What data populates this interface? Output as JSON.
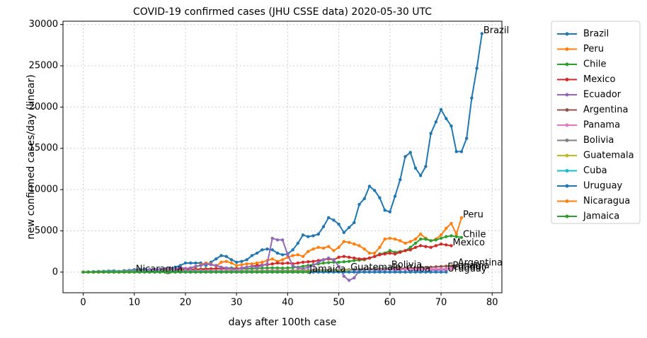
{
  "chart_data": {
    "type": "line",
    "title": "COVID-19 confirmed cases (JHU CSSE data) 2020-05-30 UTC",
    "xlabel": "days after 100th case",
    "ylabel": "new confirmed cases/day (linear)",
    "xlim": [
      -3.95,
      81.9
    ],
    "ylim": [
      -2500,
      30400
    ],
    "xticks": [
      0,
      10,
      20,
      30,
      40,
      50,
      60,
      70,
      80
    ],
    "yticks": [
      0,
      5000,
      10000,
      15000,
      20000,
      25000,
      30000
    ],
    "grid": true,
    "legend": "outside right",
    "series": [
      {
        "name": "Brazil",
        "color": "#1f77b4",
        "values": [
          0,
          20,
          50,
          80,
          100,
          130,
          150,
          100,
          180,
          200,
          300,
          330,
          350,
          300,
          320,
          340,
          400,
          450,
          600,
          800,
          1100,
          1100,
          1100,
          1100,
          800,
          1200,
          1600,
          2000,
          1900,
          1500,
          1200,
          1300,
          1500,
          2000,
          2300,
          2700,
          2800,
          2700,
          2300,
          2100,
          2200,
          2700,
          3500,
          4500,
          4300,
          4400,
          4600,
          5500,
          6600,
          6300,
          5800,
          4800,
          5400,
          6000,
          8200,
          8900,
          10400,
          9900,
          9000,
          7500,
          7300,
          9200,
          11200,
          14000,
          14500,
          12600,
          11700,
          12800,
          16800,
          18200,
          19700,
          18600,
          17700,
          14600,
          14600,
          16200,
          21100,
          24700,
          28900
        ]
      },
      {
        "name": "Peru",
        "color": "#ff7f0e",
        "values": [
          10,
          20,
          30,
          40,
          50,
          60,
          60,
          80,
          100,
          120,
          150,
          180,
          200,
          220,
          250,
          280,
          300,
          320,
          350,
          400,
          450,
          500,
          600,
          900,
          1100,
          1000,
          700,
          1200,
          1300,
          1100,
          800,
          900,
          1000,
          1000,
          1100,
          1200,
          1400,
          1600,
          1300,
          1500,
          1800,
          2000,
          2100,
          1900,
          2500,
          2800,
          3000,
          2900,
          3100,
          2600,
          3000,
          3700,
          3600,
          3400,
          3200,
          2800,
          2300,
          2300,
          3000,
          4000,
          4100,
          4000,
          3800,
          3500,
          3700,
          4000,
          4600,
          4100,
          3800,
          4000,
          4500,
          5300,
          5900,
          4600,
          6600
        ]
      },
      {
        "name": "Chile",
        "color": "#2ca02c",
        "values": [
          0,
          10,
          20,
          30,
          40,
          50,
          60,
          70,
          80,
          90,
          100,
          110,
          120,
          150,
          180,
          200,
          220,
          250,
          280,
          300,
          300,
          320,
          350,
          380,
          400,
          400,
          420,
          450,
          480,
          500,
          450,
          420,
          400,
          420,
          450,
          480,
          500,
          520,
          500,
          480,
          500,
          550,
          600,
          700,
          800,
          900,
          1000,
          1100,
          1150,
          1200,
          1200,
          1250,
          1300,
          1400,
          1450,
          1500,
          1700,
          1900,
          2200,
          2300,
          2600,
          2400,
          2500,
          2600,
          3000,
          3500,
          4000,
          4000,
          3800,
          3900,
          4100,
          4300,
          4400,
          4300,
          4200
        ]
      },
      {
        "name": "Mexico",
        "color": "#d62728",
        "values": [
          0,
          5,
          10,
          15,
          20,
          30,
          40,
          50,
          60,
          70,
          80,
          90,
          100,
          110,
          120,
          130,
          150,
          170,
          200,
          220,
          250,
          280,
          300,
          320,
          350,
          380,
          400,
          420,
          400,
          380,
          400,
          500,
          600,
          700,
          800,
          850,
          900,
          1000,
          1100,
          1050,
          1100,
          1000,
          1100,
          1200,
          1250,
          1300,
          1400,
          1500,
          1600,
          1500,
          1800,
          1900,
          1800,
          1700,
          1600,
          1600,
          1700,
          1900,
          2100,
          2200,
          2300,
          2200,
          2400,
          2600,
          2700,
          3000,
          3200,
          3100,
          3000,
          3200,
          3400,
          3300,
          3200
        ]
      },
      {
        "name": "Ecuador",
        "color": "#9467bd",
        "values": [
          0,
          10,
          20,
          30,
          20,
          50,
          40,
          60,
          80,
          100,
          150,
          100,
          200,
          300,
          250,
          300,
          400,
          500,
          300,
          600,
          400,
          500,
          700,
          800,
          1000,
          900,
          800,
          600,
          500,
          400,
          300,
          500,
          600,
          700,
          600,
          800,
          1000,
          4100,
          3900,
          3900,
          2100,
          800,
          500,
          400,
          600,
          800,
          1200,
          1500,
          1700,
          1500,
          700,
          -500,
          -1000,
          -700,
          200,
          300,
          400,
          300,
          200,
          300,
          400,
          200,
          300,
          500,
          300,
          200,
          300,
          400,
          300,
          200,
          300,
          250
        ]
      },
      {
        "name": "Argentina",
        "color": "#8c564b",
        "values": [
          0,
          5,
          10,
          15,
          20,
          25,
          30,
          35,
          40,
          45,
          50,
          55,
          60,
          65,
          70,
          75,
          80,
          85,
          90,
          95,
          100,
          100,
          110,
          120,
          100,
          110,
          120,
          130,
          120,
          110,
          120,
          130,
          140,
          150,
          130,
          140,
          150,
          160,
          150,
          140,
          150,
          160,
          170,
          180,
          190,
          200,
          210,
          220,
          230,
          240,
          250,
          260,
          270,
          280,
          290,
          300,
          320,
          340,
          360,
          380,
          400,
          420,
          440,
          460,
          480,
          500,
          520,
          560,
          600,
          640,
          680,
          720,
          740,
          750
        ]
      },
      {
        "name": "Panama",
        "color": "#e377c2",
        "values": [
          0,
          10,
          20,
          30,
          40,
          50,
          60,
          70,
          80,
          90,
          100,
          110,
          120,
          130,
          140,
          150,
          160,
          150,
          140,
          130,
          150,
          160,
          170,
          180,
          170,
          160,
          150,
          160,
          170,
          180,
          190,
          180,
          170,
          160,
          170,
          180,
          190,
          200,
          210,
          200,
          190,
          200,
          210,
          220,
          230,
          240,
          230,
          220,
          210,
          220,
          230,
          240,
          250,
          260,
          270,
          280,
          290,
          300,
          310,
          300,
          290,
          300,
          310,
          320,
          330,
          340,
          350,
          360,
          370,
          380,
          390,
          400,
          400
        ]
      },
      {
        "name": "Bolivia",
        "color": "#7f7f7f",
        "values": [
          0,
          5,
          5,
          10,
          10,
          15,
          15,
          20,
          20,
          25,
          25,
          30,
          30,
          35,
          35,
          40,
          40,
          45,
          45,
          50,
          50,
          55,
          55,
          60,
          60,
          65,
          65,
          70,
          70,
          80,
          80,
          90,
          90,
          100,
          100,
          110,
          120,
          130,
          140,
          150,
          160,
          170,
          180,
          190,
          200,
          210,
          220,
          230,
          240,
          250,
          260,
          280,
          300,
          320,
          340,
          360,
          380,
          400,
          420,
          450,
          500
        ]
      },
      {
        "name": "Guatemala",
        "color": "#bcbd22",
        "values": [
          0,
          2,
          4,
          6,
          8,
          10,
          12,
          14,
          16,
          18,
          20,
          22,
          24,
          26,
          28,
          30,
          32,
          34,
          36,
          38,
          40,
          42,
          44,
          46,
          48,
          50,
          52,
          54,
          56,
          58,
          60,
          62,
          64,
          66,
          68,
          70,
          72,
          74,
          76,
          78,
          80,
          85,
          90,
          95,
          100,
          110,
          120,
          130,
          140,
          150,
          160,
          180,
          200
        ]
      },
      {
        "name": "Cuba",
        "color": "#17becf",
        "values": [
          0,
          10,
          20,
          30,
          40,
          40,
          50,
          50,
          40,
          50,
          60,
          50,
          40,
          50,
          60,
          50,
          40,
          50,
          60,
          50,
          40,
          50,
          60,
          50,
          40,
          50,
          40,
          50,
          40,
          30,
          40,
          30,
          40,
          30,
          20,
          30,
          20,
          30,
          20,
          30,
          20,
          30,
          20,
          30,
          20,
          20,
          20,
          20,
          20,
          20,
          20,
          20,
          20,
          20,
          20,
          20,
          20,
          20,
          20,
          20,
          20,
          20,
          20,
          20
        ]
      },
      {
        "name": "Uruguay",
        "color": "#1f77b4",
        "values": [
          0,
          10,
          20,
          30,
          20,
          10,
          20,
          10,
          20,
          10,
          20,
          10,
          20,
          10,
          10,
          10,
          10,
          10,
          10,
          10,
          10,
          10,
          10,
          10,
          10,
          10,
          10,
          10,
          10,
          10,
          10,
          10,
          10,
          10,
          10,
          10,
          10,
          10,
          10,
          10,
          10,
          10,
          10,
          10,
          10,
          10,
          10,
          10,
          10,
          10,
          10,
          10,
          10,
          10,
          10,
          10,
          10,
          10,
          10,
          10,
          10,
          10,
          10,
          10,
          10,
          10,
          10,
          10,
          10,
          10,
          10,
          10
        ]
      },
      {
        "name": "Nicaragua",
        "color": "#ff7f0e",
        "values": [
          0,
          0,
          0,
          0,
          0,
          0,
          0,
          0,
          0,
          0,
          0
        ]
      },
      {
        "name": "Jamaica",
        "color": "#2ca02c",
        "values": [
          0,
          5,
          5,
          5,
          5,
          5,
          5,
          5,
          5,
          5,
          5,
          5,
          5,
          5,
          5,
          5,
          5,
          5,
          5,
          5,
          5,
          5,
          5,
          5,
          5,
          5,
          5,
          5,
          5,
          5,
          5,
          5,
          5,
          5,
          5,
          5,
          5,
          5,
          5,
          5,
          5,
          5,
          5,
          5,
          5
        ]
      }
    ]
  }
}
